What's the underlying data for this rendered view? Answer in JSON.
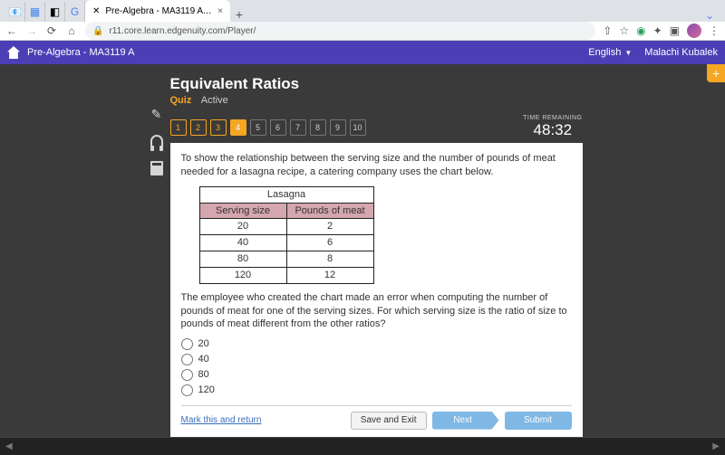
{
  "browser": {
    "tab_title": "Pre-Algebra - MA3119 A - Ima…",
    "url": "r11.core.learn.edgenuity.com/Player/"
  },
  "appbar": {
    "course": "Pre-Algebra - MA3119 A",
    "language": "English",
    "username": "Malachi Kubalek"
  },
  "header": {
    "title": "Equivalent Ratios",
    "quiz_label": "Quiz",
    "active_label": "Active"
  },
  "qnav": {
    "items": [
      "1",
      "2",
      "3",
      "4",
      "5",
      "6",
      "7",
      "8",
      "9",
      "10"
    ],
    "answered": [
      0,
      1,
      2
    ],
    "current": 3
  },
  "timer": {
    "label": "TIME REMAINING",
    "value": "48:32"
  },
  "question": {
    "intro": "To show the relationship between the serving size and the number of pounds of meat needed for a lasagna recipe, a catering company uses the chart below.",
    "table": {
      "title": "Lasagna",
      "col1": "Serving size",
      "col2": "Pounds of meat",
      "rows": [
        [
          "20",
          "2"
        ],
        [
          "40",
          "6"
        ],
        [
          "80",
          "8"
        ],
        [
          "120",
          "12"
        ]
      ]
    },
    "prompt": "The employee who created the chart made an error when computing the number of pounds of meat for one of the serving sizes. For which serving size is the ratio of size to pounds of meat different from the other ratios?",
    "options": [
      "20",
      "40",
      "80",
      "120"
    ]
  },
  "footer": {
    "mark": "Mark this and return",
    "save": "Save and Exit",
    "next": "Next",
    "submit": "Submit"
  }
}
